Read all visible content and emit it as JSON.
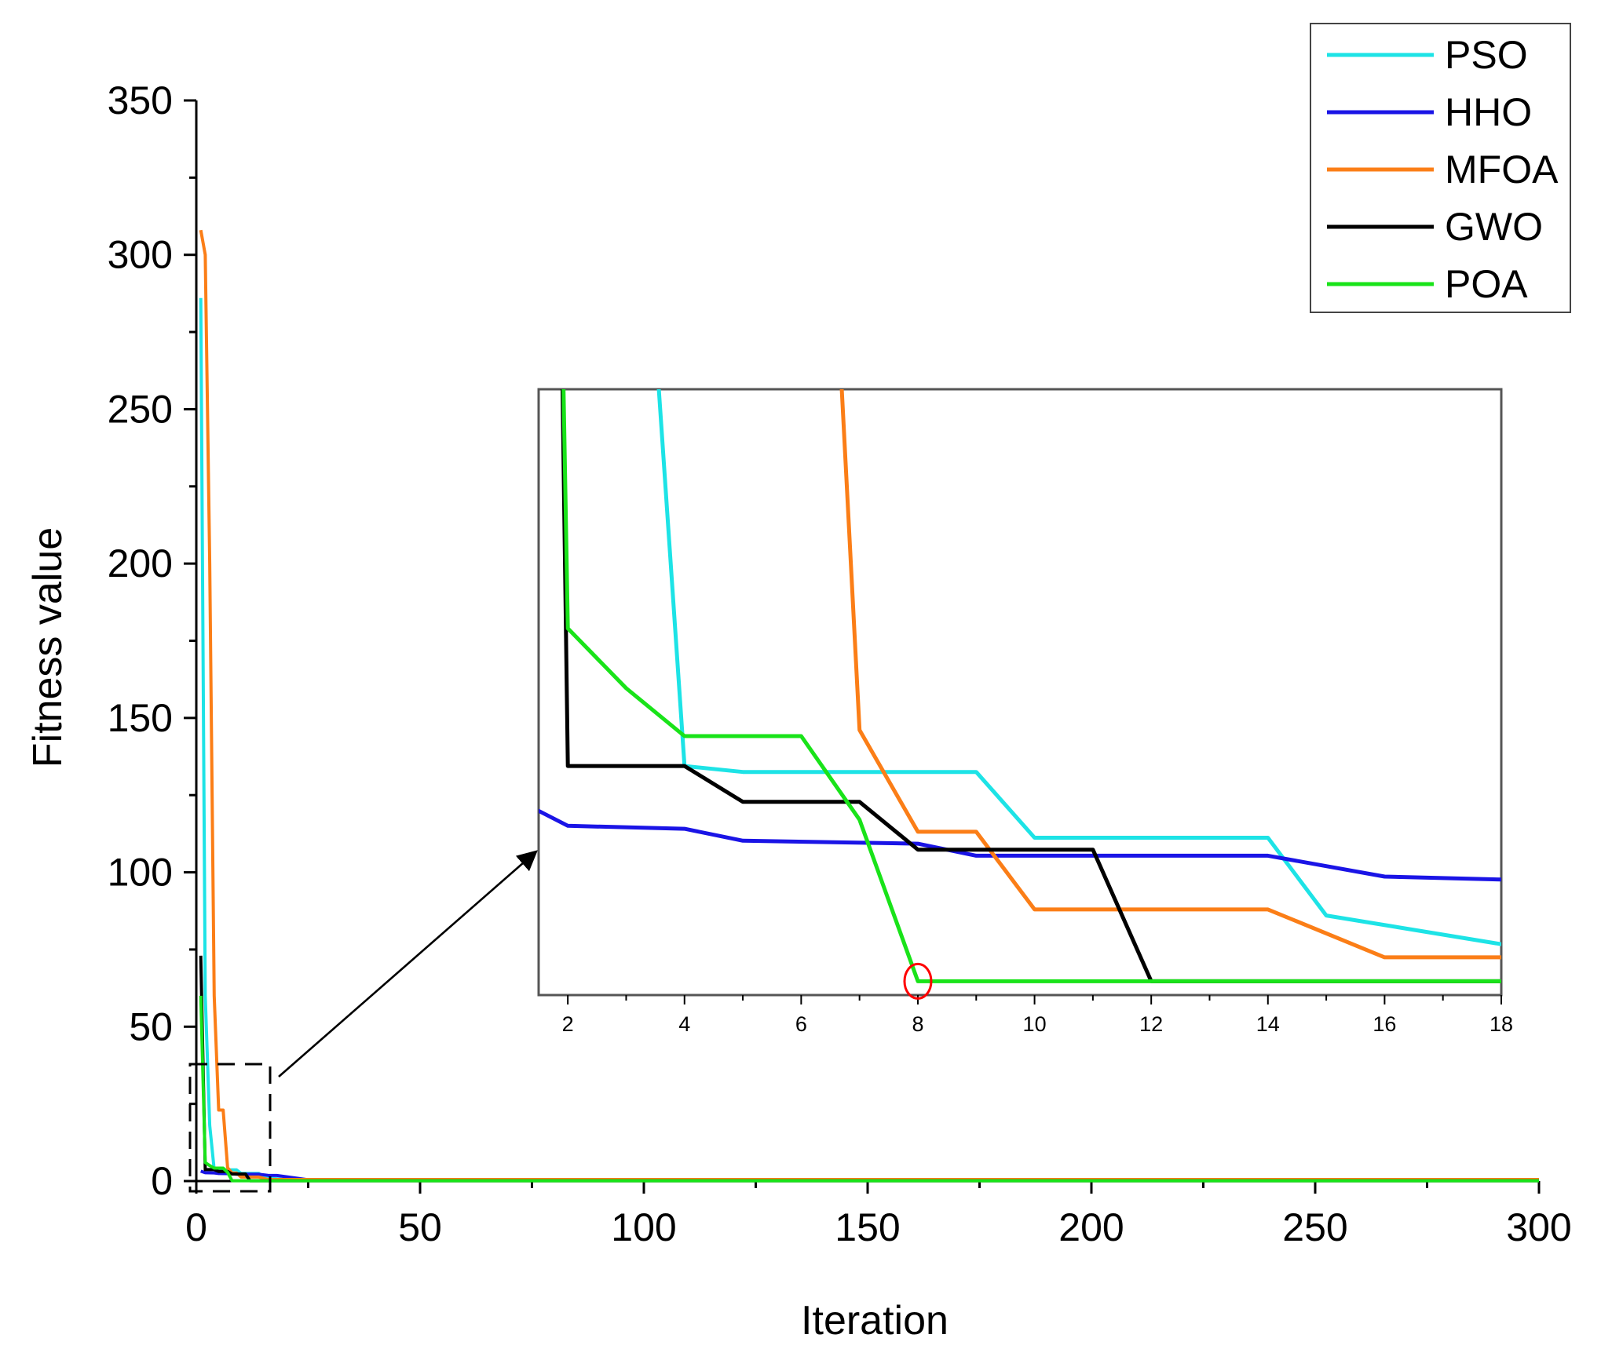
{
  "chart_data": {
    "type": "line",
    "xlabel": "Iteration",
    "ylabel": "Fitness value",
    "xlim": [
      0,
      300
    ],
    "ylim": [
      0,
      350
    ],
    "xticks": [
      0,
      50,
      100,
      150,
      200,
      250,
      300
    ],
    "yticks": [
      0,
      50,
      100,
      150,
      200,
      250,
      300,
      350
    ],
    "legend": "top-right",
    "series": [
      {
        "name": "PSO",
        "color": "#1de3e6",
        "x": [
          1,
          2,
          3,
          4,
          5,
          9,
          10,
          14,
          15,
          20,
          300
        ],
        "y": [
          286,
          60,
          18,
          3.7,
          3.6,
          3.6,
          2.5,
          2.5,
          1.2,
          0.4,
          0.4
        ]
      },
      {
        "name": "HHO",
        "color": "#1a14e6",
        "x": [
          1,
          2,
          4,
          5,
          8,
          9,
          14,
          16,
          18,
          25,
          300
        ],
        "y": [
          3.2,
          2.7,
          2.65,
          2.45,
          2.4,
          2.2,
          2.2,
          1.85,
          1.8,
          0.4,
          0.4
        ]
      },
      {
        "name": "MFOA",
        "color": "#fb7e17",
        "x": [
          1,
          2,
          3,
          4,
          5,
          6,
          7,
          8,
          9,
          10,
          14,
          16,
          300
        ],
        "y": [
          308,
          300,
          200,
          60,
          23,
          23,
          4.3,
          2.6,
          2.6,
          1.3,
          1.3,
          0.5,
          0.5
        ]
      },
      {
        "name": "GWO",
        "color": "#000000",
        "x": [
          1,
          2,
          4,
          5,
          7,
          8,
          11,
          12,
          300
        ],
        "y": [
          73,
          3.7,
          3.7,
          3.1,
          3.1,
          2.3,
          2.3,
          0.1,
          0.1
        ]
      },
      {
        "name": "POA",
        "color": "#19e319",
        "x": [
          1,
          2,
          3,
          4,
          6,
          7,
          8,
          300
        ],
        "y": [
          60,
          6,
          5,
          4.2,
          4.2,
          2.8,
          0.1,
          0.1
        ]
      }
    ],
    "inset": {
      "xlim": [
        1.5,
        18
      ],
      "xticks": [
        2,
        4,
        6,
        8,
        10,
        12,
        14,
        16,
        18
      ],
      "ylim": [
        0,
        10
      ],
      "highlight": {
        "x": 8,
        "y": 0.1,
        "color": "#ff0000"
      }
    }
  }
}
